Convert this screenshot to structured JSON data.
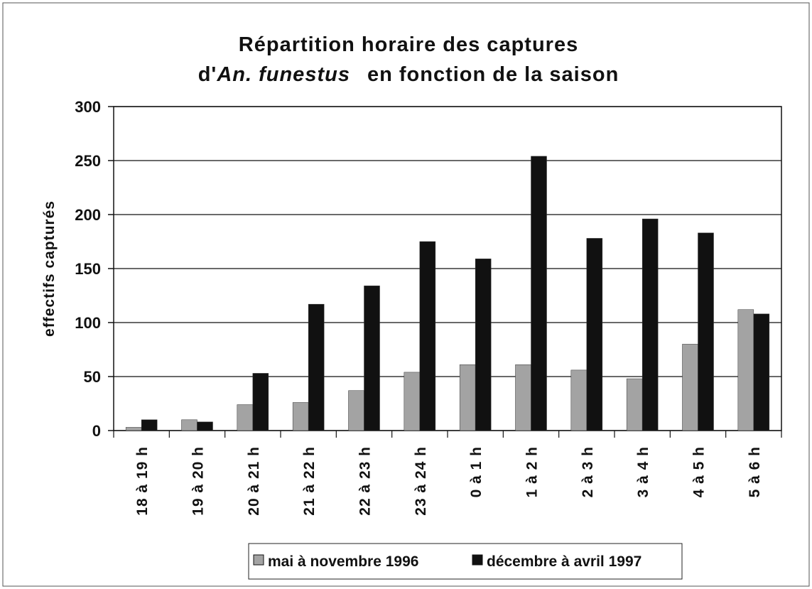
{
  "chart_data": {
    "type": "bar",
    "title": {
      "line1": "Répartition horaire des captures",
      "line2": [
        "d'",
        "An. funestus",
        "en fonction de la saison"
      ]
    },
    "y_label": "effectifs capturés",
    "categories": [
      "18 à 19 h",
      "19 à 20 h",
      "20 à 21 h",
      "21 à 22 h",
      "22 à 23 h",
      "23 à 24 h",
      "0 à 1 h",
      "1 à 2 h",
      "2 à 3 h",
      "3 à 4 h",
      "4 à 5 h",
      "5 à 6 h"
    ],
    "series": [
      {
        "name": "mai à novembre 1996",
        "color": "#a3a3a3",
        "values": [
          3,
          10,
          24,
          26,
          37,
          54,
          61,
          61,
          56,
          48,
          80,
          112
        ]
      },
      {
        "name": "décembre à avril 1997",
        "color": "#111111",
        "values": [
          10,
          8,
          53,
          117,
          134,
          175,
          159,
          254,
          178,
          196,
          183,
          108
        ]
      }
    ],
    "ylim": [
      0,
      300
    ],
    "yticks": [
      0,
      50,
      100,
      150,
      200,
      250,
      300
    ],
    "grid": true
  }
}
